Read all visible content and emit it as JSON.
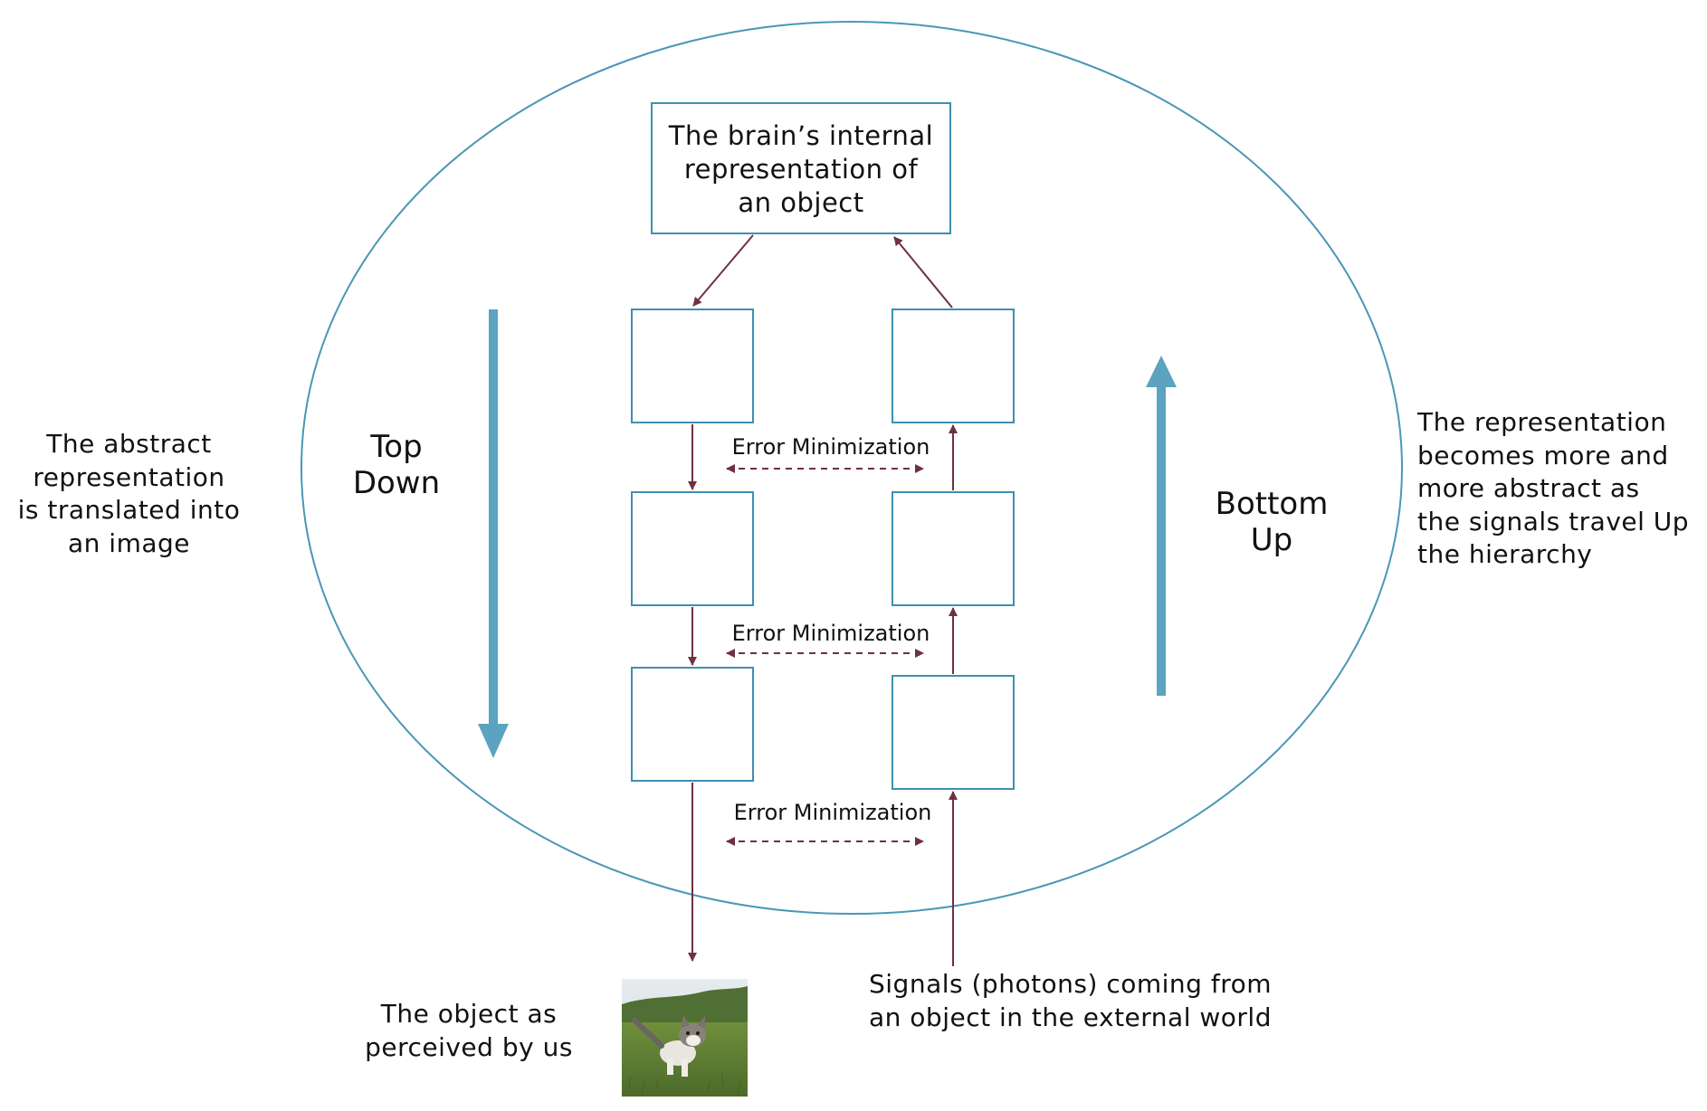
{
  "top_box": {
    "lines": [
      "The brain’s internal",
      "representation of",
      "an object"
    ]
  },
  "left_caption": {
    "lines": [
      "The abstract",
      "representation",
      "is translated into",
      "an image"
    ]
  },
  "right_caption": {
    "lines": [
      "The representation",
      "becomes more and",
      "more abstract as",
      "the signals travel Up",
      "the hierarchy"
    ]
  },
  "top_down_label": {
    "lines": [
      "Top",
      "Down"
    ]
  },
  "bottom_up_label": {
    "lines": [
      "Bottom",
      "Up"
    ]
  },
  "error_labels": [
    "Error Minimization",
    "Error Minimization",
    "Error Minimization"
  ],
  "object_caption": {
    "lines": [
      "The object as",
      "perceived by us"
    ]
  },
  "signals_caption": {
    "lines": [
      "Signals (photons) coming from",
      "an object in the external world"
    ]
  },
  "colors": {
    "ellipse_stroke": "#4a97b5",
    "box_stroke": "#3e8fb0",
    "big_arrow": "#5ba3c0",
    "small_arrow": "#6e3140",
    "grass": "#5f7e35",
    "sky": "#dfe6ea"
  },
  "icons": {
    "photo": "kitten-on-grass-photo"
  }
}
